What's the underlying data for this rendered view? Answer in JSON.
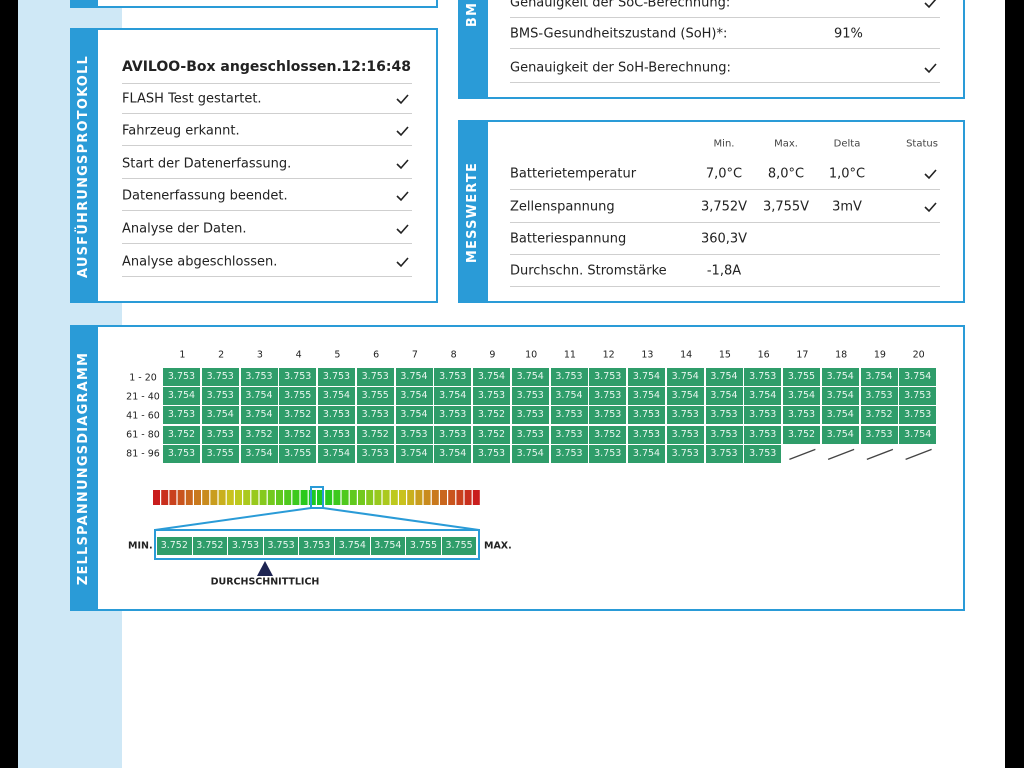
{
  "bms_panel": {
    "title": "BM",
    "rows": [
      {
        "label": "Genauigkeit der SoC-Berechnung:"
      },
      {
        "label": "BMS-Gesundheitszustand (SoH)*:",
        "value": "91%"
      },
      {
        "label": "Genauigkeit der SoH-Berechnung:"
      }
    ]
  },
  "execution_log": {
    "title": "AUSFÜHRUNGSPROTOKOLL",
    "header": {
      "label": "AVILOO-Box angeschlossen.",
      "time": "12:16:48"
    },
    "rows": [
      "FLASH Test gestartet.",
      "Fahrzeug erkannt.",
      "Start der Datenerfassung.",
      "Datenerfassung beendet.",
      "Analyse der Daten.",
      "Analyse abgeschlossen."
    ]
  },
  "measurements": {
    "title": "MESSWERTE",
    "columns": [
      "Min.",
      "Max.",
      "Delta",
      "Status"
    ],
    "rows": [
      {
        "label": "Batterietemperatur",
        "min": "7,0°C",
        "max": "8,0°C",
        "delta": "1,0°C"
      },
      {
        "label": "Zellenspannung",
        "min": "3,752V",
        "max": "3,755V",
        "delta": "3mV"
      },
      {
        "label": "Batteriespannung",
        "min": "360,3V"
      },
      {
        "label": "Durchschn. Stromstärke",
        "min": "-1,8A"
      }
    ]
  },
  "cell_diagram": {
    "title": "ZELLSPANNUNGSDIAGRAMM",
    "columns": [
      1,
      2,
      3,
      4,
      5,
      6,
      7,
      8,
      9,
      10,
      11,
      12,
      13,
      14,
      15,
      16,
      17,
      18,
      19,
      20
    ],
    "row_labels": [
      "1 - 20",
      "21 - 40",
      "41 - 60",
      "61 - 80",
      "81 - 96"
    ],
    "rows": [
      [
        "3.753",
        "3.753",
        "3.753",
        "3.753",
        "3.753",
        "3.753",
        "3.754",
        "3.753",
        "3.754",
        "3.754",
        "3.753",
        "3.753",
        "3.754",
        "3.754",
        "3.754",
        "3.753",
        "3.755",
        "3.754",
        "3.754",
        "3.754"
      ],
      [
        "3.754",
        "3.753",
        "3.754",
        "3.755",
        "3.754",
        "3.755",
        "3.754",
        "3.754",
        "3.753",
        "3.753",
        "3.754",
        "3.753",
        "3.754",
        "3.754",
        "3.754",
        "3.754",
        "3.754",
        "3.754",
        "3.753",
        "3.753"
      ],
      [
        "3.753",
        "3.754",
        "3.754",
        "3.752",
        "3.753",
        "3.753",
        "3.754",
        "3.753",
        "3.752",
        "3.753",
        "3.753",
        "3.753",
        "3.753",
        "3.753",
        "3.753",
        "3.753",
        "3.753",
        "3.754",
        "3.752",
        "3.753"
      ],
      [
        "3.752",
        "3.753",
        "3.752",
        "3.752",
        "3.753",
        "3.752",
        "3.753",
        "3.753",
        "3.752",
        "3.753",
        "3.753",
        "3.752",
        "3.753",
        "3.753",
        "3.753",
        "3.753",
        "3.752",
        "3.754",
        "3.753",
        "3.754"
      ],
      [
        "3.753",
        "3.755",
        "3.754",
        "3.755",
        "3.754",
        "3.753",
        "3.754",
        "3.754",
        "3.753",
        "3.754",
        "3.753",
        "3.753",
        "3.754",
        "3.753",
        "3.753",
        "3.753"
      ]
    ],
    "scale": {
      "min_label": "MIN.",
      "max_label": "MAX.",
      "values": [
        "3.752",
        "3.752",
        "3.753",
        "3.753",
        "3.753",
        "3.754",
        "3.754",
        "3.755",
        "3.755"
      ],
      "average_label": "DURCHSCHNITTLICH"
    }
  }
}
